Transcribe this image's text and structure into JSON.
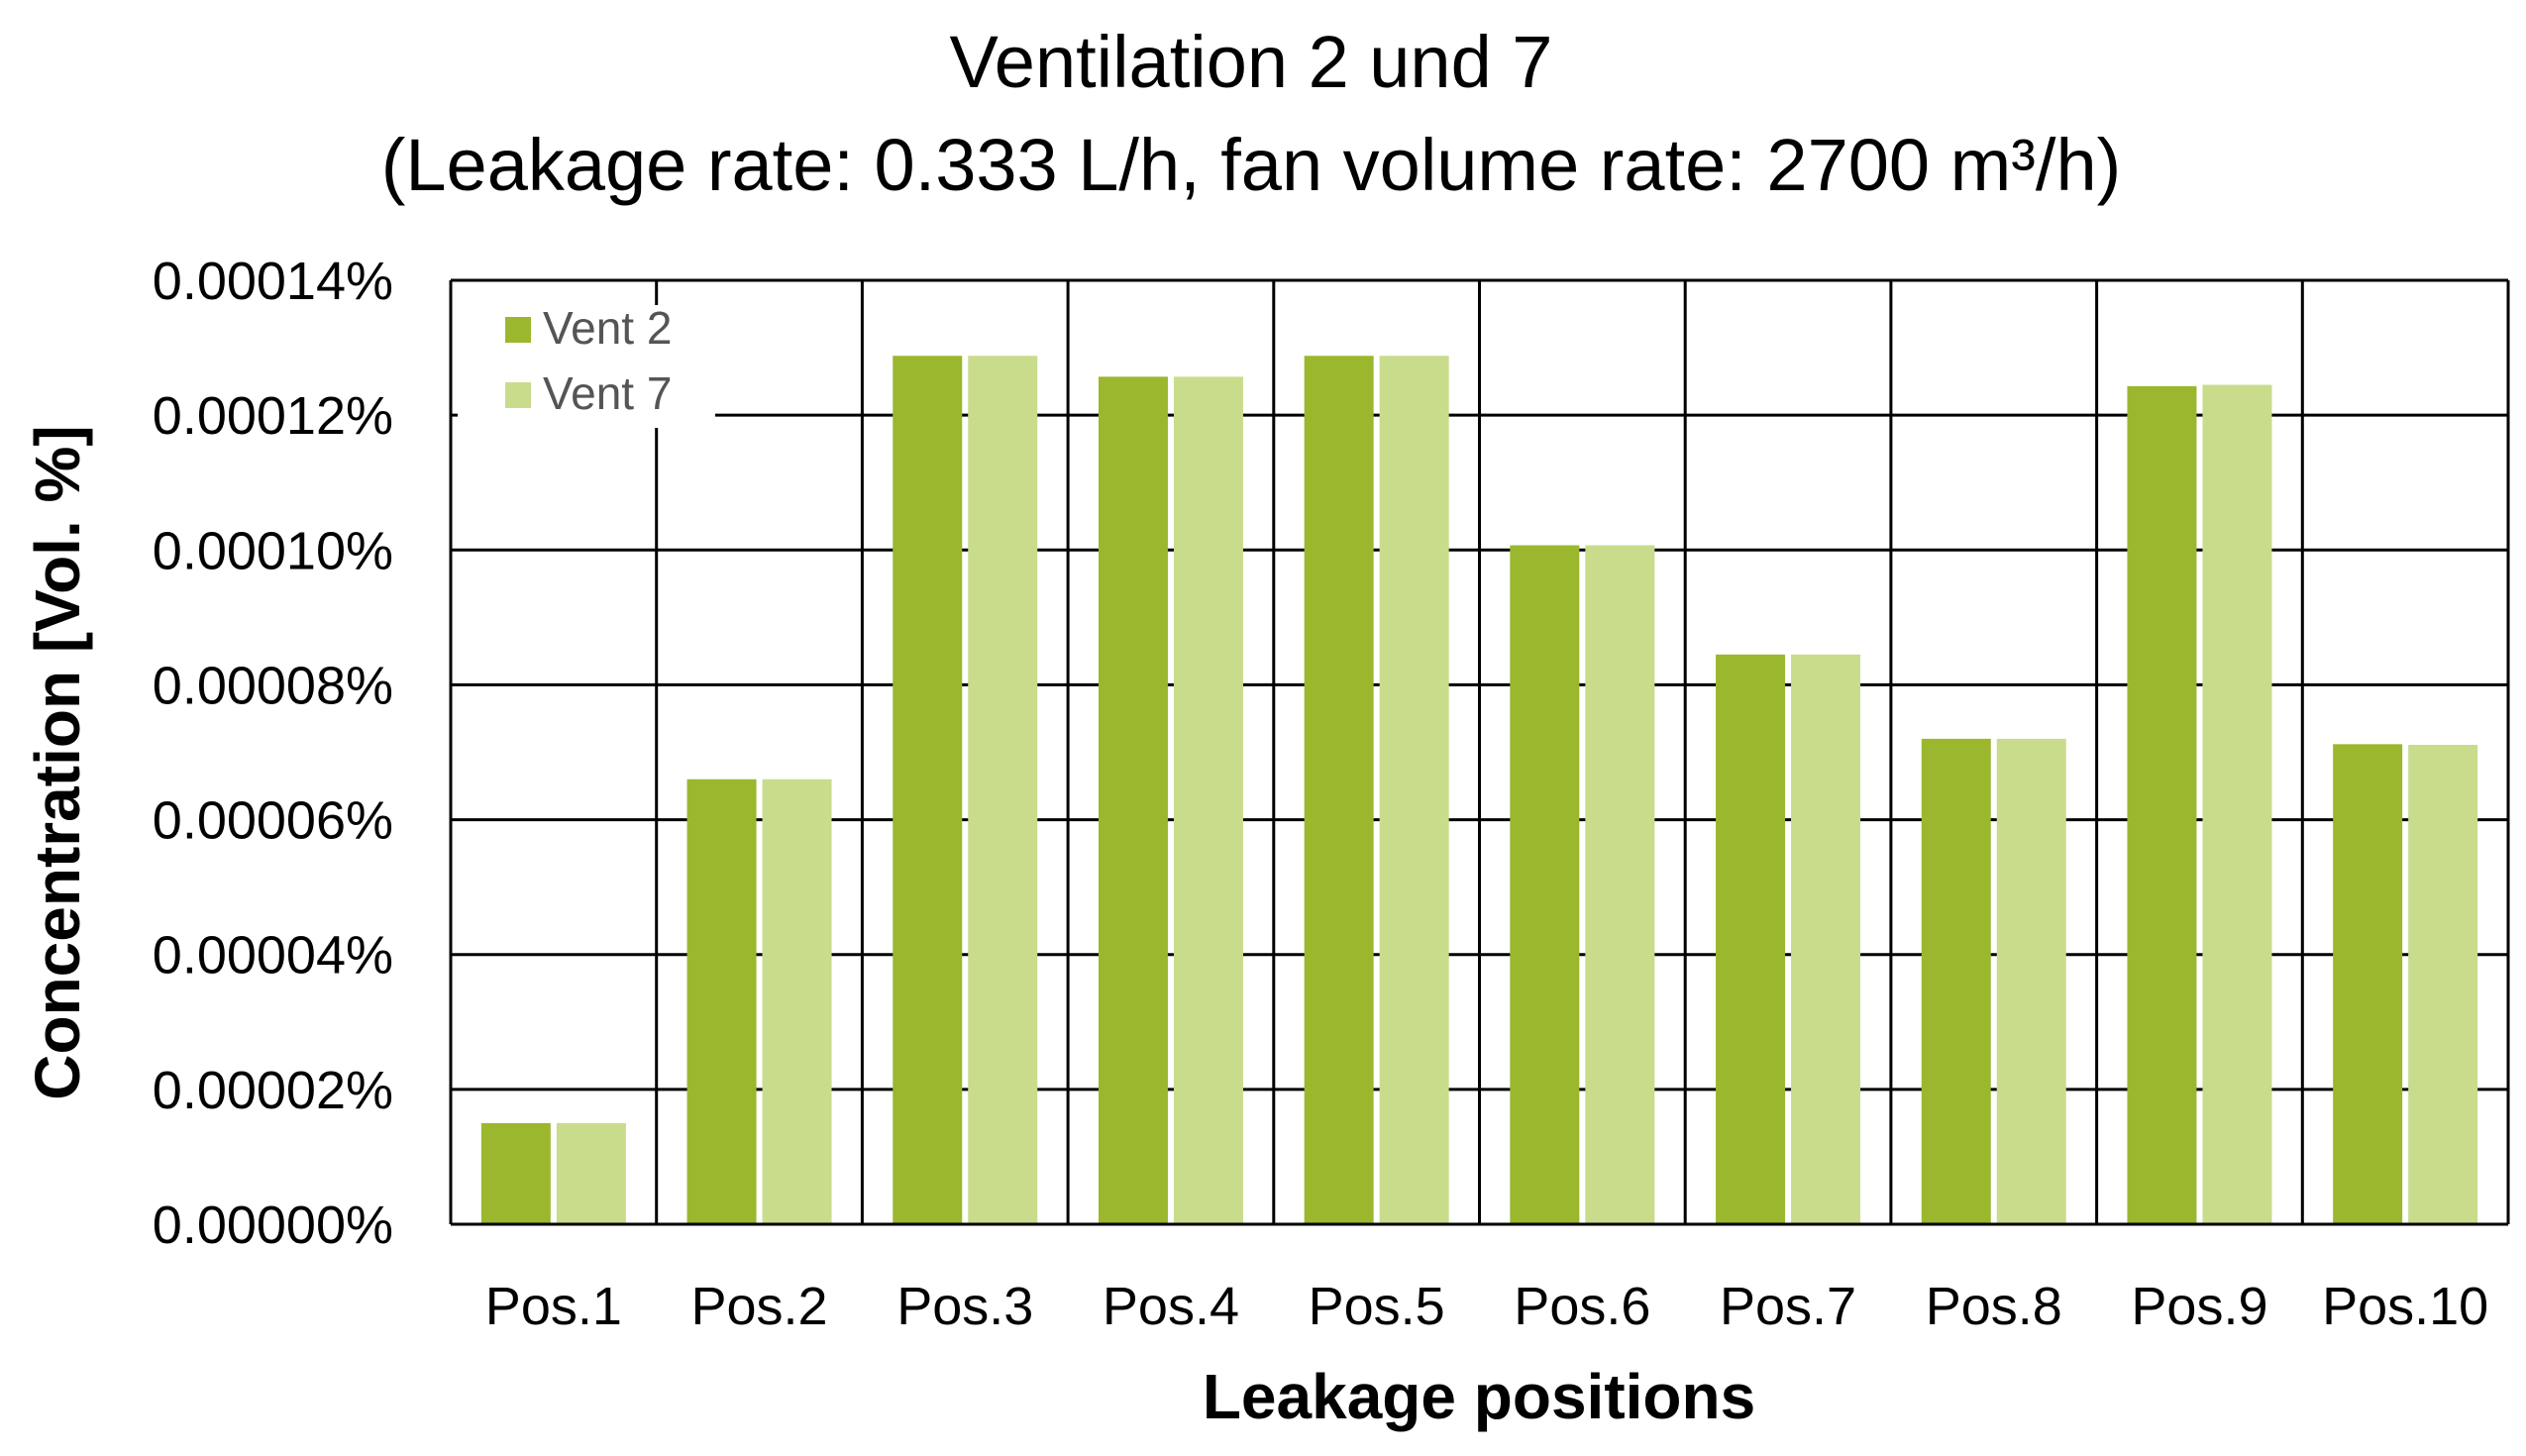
{
  "chart_data": {
    "type": "bar",
    "title": "Ventilation 2 und 7",
    "subtitle": "(Leakage rate: 0.333 L/h, fan volume rate: 2700 m³/h)",
    "xlabel": "Leakage positions",
    "ylabel": "Concentration [Vol. %]",
    "ylim": [
      0,
      0.00014
    ],
    "yticks": [
      "0.00000%",
      "0.00002%",
      "0.00004%",
      "0.00006%",
      "0.00008%",
      "0.00010%",
      "0.00012%",
      "0.00014%"
    ],
    "categories": [
      "Pos.1",
      "Pos.2",
      "Pos.3",
      "Pos.4",
      "Pos.5",
      "Pos.6",
      "Pos.7",
      "Pos.8",
      "Pos.9",
      "Pos.10"
    ],
    "series": [
      {
        "name": "Vent 2",
        "color": "#9ab72e",
        "values": [
          1.5e-05,
          6.6e-05,
          0.0001288,
          0.0001257,
          0.0001288,
          0.0001007,
          8.45e-05,
          7.2e-05,
          0.0001243,
          7.12e-05
        ]
      },
      {
        "name": "Vent 7",
        "color": "#c8dc8c",
        "values": [
          1.5e-05,
          6.6e-05,
          0.0001288,
          0.0001257,
          0.0001288,
          0.0001007,
          8.45e-05,
          7.2e-05,
          0.0001245,
          7.11e-05
        ]
      }
    ],
    "grid": true,
    "legend": "top-left"
  }
}
